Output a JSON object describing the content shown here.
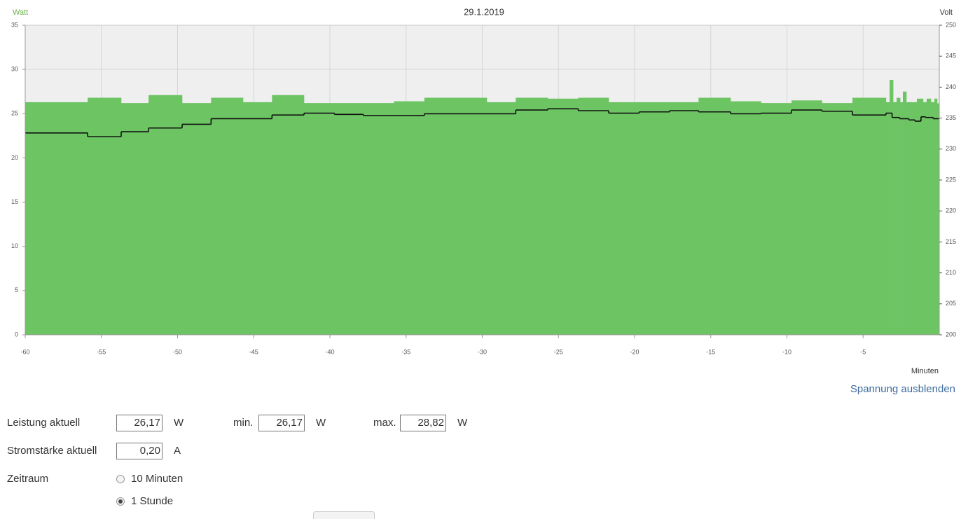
{
  "chart_data": {
    "type": "step",
    "title": "29.1.2019",
    "ylabel": "Watt",
    "y2label": "Volt",
    "xlabel": "Minuten",
    "xlim": [
      -60,
      0
    ],
    "xticks": [
      -60,
      -55,
      -50,
      -45,
      -40,
      -35,
      -30,
      -25,
      -20,
      -15,
      -10,
      -5
    ],
    "ylim": [
      0,
      35
    ],
    "yticks": [
      0,
      5,
      10,
      15,
      20,
      25,
      30,
      35
    ],
    "y2lim": [
      200,
      250
    ],
    "y2ticks": [
      200,
      205,
      210,
      215,
      220,
      225,
      230,
      235,
      240,
      245,
      250
    ],
    "grid": true,
    "series": [
      {
        "fill": "area",
        "color": "#6dc463",
        "x": [
          -60,
          -55.9,
          -53.7,
          -51.9,
          -49.7,
          -47.8,
          -45.7,
          -43.8,
          -41.7,
          -35.8,
          -33.8,
          -29.7,
          -27.8,
          -25.7,
          -23.7,
          -21.7,
          -15.8,
          -13.7,
          -11.7,
          -9.7,
          -7.7,
          -5.7,
          -3.5,
          -3.26,
          -3.03,
          -2.8,
          -2.57,
          -2.39,
          -2.16,
          -1.47,
          -1.06,
          -0.83,
          -0.55,
          -0.32,
          -0.14
        ],
        "values": [
          26.3,
          26.8,
          26.2,
          27.1,
          26.2,
          26.8,
          26.3,
          27.1,
          26.2,
          26.4,
          26.8,
          26.3,
          26.8,
          26.7,
          26.8,
          26.3,
          26.8,
          26.4,
          26.2,
          26.5,
          26.2,
          26.8,
          26.3,
          28.82,
          26.3,
          26.8,
          26.3,
          27.5,
          26.3,
          26.7,
          26.3,
          26.7,
          26.3,
          26.7,
          26.17
        ]
      },
      {
        "fill": "line",
        "color": "#111111",
        "axis": "y2",
        "x": [
          -60,
          -55.9,
          -53.7,
          -51.9,
          -49.7,
          -47.8,
          -43.8,
          -41.7,
          -39.7,
          -37.8,
          -33.8,
          -27.8,
          -25.7,
          -23.7,
          -21.7,
          -19.7,
          -17.7,
          -15.8,
          -13.7,
          -11.7,
          -9.7,
          -7.7,
          -5.7,
          -3.5,
          -3.1,
          -2.6,
          -2.0,
          -1.6,
          -1.2,
          -0.9,
          -0.4
        ],
        "values": [
          232.6,
          232.0,
          232.8,
          233.4,
          234.0,
          234.9,
          235.5,
          235.8,
          235.6,
          235.4,
          235.7,
          236.3,
          236.5,
          236.2,
          235.8,
          236.0,
          236.2,
          236.0,
          235.7,
          235.8,
          236.3,
          236.1,
          235.5,
          235.8,
          235.1,
          234.9,
          234.7,
          234.5,
          235.2,
          235.1,
          234.9
        ]
      }
    ]
  },
  "toggle_link": "Spannung ausblenden",
  "form": {
    "power": {
      "label": "Leistung aktuell",
      "value": "26,17",
      "unit": "W"
    },
    "min": {
      "label": "min.",
      "value": "26,17",
      "unit": "W"
    },
    "max": {
      "label": "max.",
      "value": "28,82",
      "unit": "W"
    },
    "current": {
      "label": "Stromstärke aktuell",
      "value": "0,20",
      "unit": "A"
    },
    "period": {
      "label": "Zeitraum",
      "options": [
        "10 Minuten",
        "1 Stunde"
      ],
      "selected": 1
    }
  }
}
